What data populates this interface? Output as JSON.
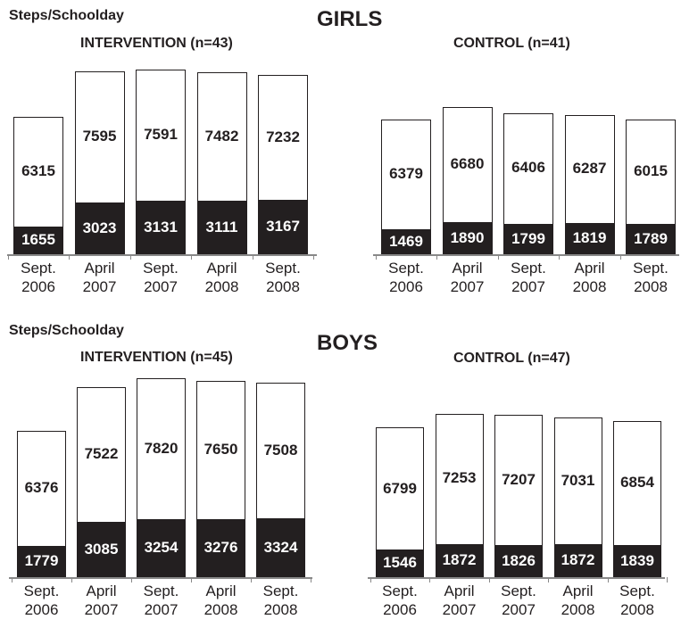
{
  "chart_data": [
    {
      "type": "bar",
      "stacked": true,
      "title": "GIRLS",
      "y_label": "Steps/Schoolday",
      "subtitle": "INTERVENTION (n=43)",
      "categories": [
        "Sept. 2006",
        "April 2007",
        "Sept. 2007",
        "April 2008",
        "Sept. 2008"
      ],
      "series": [
        {
          "color": "#231f20",
          "values": [
            1655,
            3023,
            3131,
            3111,
            3167
          ]
        },
        {
          "color": "#ffffff",
          "values": [
            6315,
            7595,
            7591,
            7482,
            7232
          ]
        }
      ]
    },
    {
      "type": "bar",
      "stacked": true,
      "subtitle": "CONTROL (n=41)",
      "categories": [
        "Sept. 2006",
        "April 2007",
        "Sept. 2007",
        "April 2008",
        "Sept. 2008"
      ],
      "series": [
        {
          "color": "#231f20",
          "values": [
            1469,
            1890,
            1799,
            1819,
            1789
          ]
        },
        {
          "color": "#ffffff",
          "values": [
            6379,
            6680,
            6406,
            6287,
            6015
          ]
        }
      ]
    },
    {
      "type": "bar",
      "stacked": true,
      "title": "BOYS",
      "y_label": "Steps/Schoolday",
      "subtitle": "INTERVENTION (n=45)",
      "categories": [
        "Sept. 2006",
        "April 2007",
        "Sept. 2007",
        "April 2008",
        "Sept. 2008"
      ],
      "series": [
        {
          "color": "#231f20",
          "values": [
            1779,
            3085,
            3254,
            3276,
            3324
          ]
        },
        {
          "color": "#ffffff",
          "values": [
            6376,
            7522,
            7820,
            7650,
            7508
          ]
        }
      ]
    },
    {
      "type": "bar",
      "stacked": true,
      "subtitle": "CONTROL (n=47)",
      "categories": [
        "Sept. 2006",
        "April 2007",
        "Sept. 2007",
        "April 2008",
        "Sept. 2008"
      ],
      "series": [
        {
          "color": "#231f20",
          "values": [
            1546,
            1872,
            1826,
            1872,
            1839
          ]
        },
        {
          "color": "#ffffff",
          "values": [
            6799,
            7253,
            7207,
            7031,
            6854
          ]
        }
      ]
    }
  ]
}
